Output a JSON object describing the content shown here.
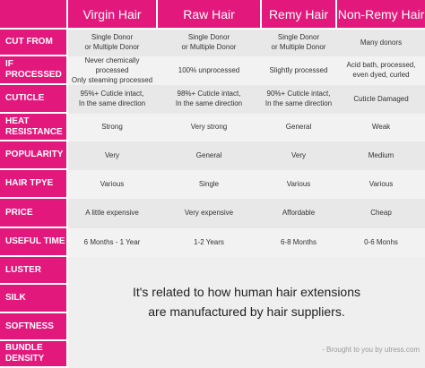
{
  "header": {
    "columns": [
      "Virgin Hair",
      "Raw Hair",
      "Remy Hair",
      "Non-Remy Hair"
    ]
  },
  "rows": [
    {
      "label": "CUT FROM",
      "cells": [
        "Single Donor\nor Multiple Donor",
        "Single Donor\nor Multiple Donor",
        "Single Donor\nor Multiple Donor",
        "Many donors"
      ]
    },
    {
      "label": "IF PROCESSED",
      "cells": [
        "Never chemically processed\nOnly steaming processed",
        "100% unprocessed",
        "Slightly processed",
        "Acid bath, processed,\neven dyed, curled"
      ]
    },
    {
      "label": "CUTICLE",
      "cells": [
        "95%+ Cuticle intact,\nIn the same direction",
        "98%+ Cuticle intact,\nIn the same direction",
        "90%+ Cuticle intact,\nIn the same direction",
        "Cuticle Damaged"
      ]
    },
    {
      "label": "HEAT\nRESISTANCE",
      "cells": [
        "Strong",
        "Very strong",
        "General",
        "Weak"
      ]
    },
    {
      "label": "POPULARITY",
      "cells": [
        "Very",
        "General",
        "Very",
        "Medium"
      ]
    },
    {
      "label": "HAIR TPYE",
      "cells": [
        "Various",
        "Single",
        "Various",
        "Various"
      ]
    },
    {
      "label": "PRICE",
      "cells": [
        "A little expensive",
        "Very expensive",
        "Affordable",
        "Cheap"
      ]
    },
    {
      "label": "USEFUL TIME",
      "cells": [
        "6 Months - 1 Year",
        "1-2 Years",
        "6-8 Months",
        "0-6 Monhs"
      ]
    },
    {
      "label": "LUSTER"
    },
    {
      "label": "SILK"
    },
    {
      "label": "SOFTNESS"
    },
    {
      "label": "BUNDLE\nDENSITY"
    }
  ],
  "note": "It's related to how human hair extensions\nare manufactured by hair suppliers.",
  "credit": "- Brought to you by utress.com"
}
